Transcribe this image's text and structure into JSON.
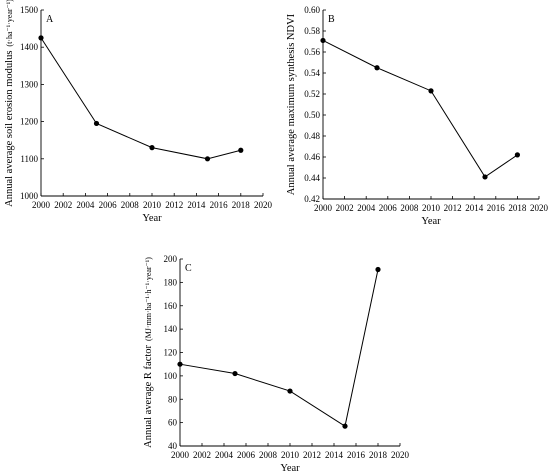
{
  "chart_data": [
    {
      "id": "A",
      "type": "line",
      "panel_label": "A",
      "xlabel": "Year",
      "ylabel": "Annual average soil erosion modulus",
      "ylabel_unit": "(t·ha⁻¹·year⁻¹)",
      "xlim": [
        2000,
        2020
      ],
      "ylim": [
        1000,
        1500
      ],
      "xticks": [
        "2000",
        "2002",
        "2004",
        "2006",
        "2008",
        "2010",
        "2012",
        "2014",
        "2016",
        "2018",
        "2020"
      ],
      "yticks": [
        "1000",
        "1100",
        "1200",
        "1300",
        "1400",
        "1500"
      ],
      "x": [
        2000,
        2005,
        2010,
        2015,
        2018
      ],
      "y": [
        1425,
        1195,
        1130,
        1100,
        1123
      ]
    },
    {
      "id": "B",
      "type": "line",
      "panel_label": "B",
      "xlabel": "Year",
      "ylabel": "Annual average maximum synthesis  NDVI",
      "ylabel_unit": "",
      "xlim": [
        2000,
        2020
      ],
      "ylim": [
        0.42,
        0.6
      ],
      "xticks": [
        "2000",
        "2002",
        "2004",
        "2006",
        "2008",
        "2010",
        "2012",
        "2014",
        "2016",
        "2018",
        "2020"
      ],
      "yticks": [
        "0.42",
        "0.44",
        "0.46",
        "0.48",
        "0.50",
        "0.52",
        "0.54",
        "0.56",
        "0.58",
        "0.60"
      ],
      "x": [
        2000,
        2005,
        2010,
        2015,
        2018
      ],
      "y": [
        0.571,
        0.545,
        0.523,
        0.441,
        0.462
      ]
    },
    {
      "id": "C",
      "type": "line",
      "panel_label": "C",
      "xlabel": "Year",
      "ylabel": "Annual average R factor",
      "ylabel_unit": "(MJ·mm·ha⁻¹·h⁻¹·year⁻¹)",
      "xlim": [
        2000,
        2020
      ],
      "ylim": [
        40,
        200
      ],
      "xticks": [
        "2000",
        "2002",
        "2004",
        "2006",
        "2008",
        "2010",
        "2012",
        "2014",
        "2016",
        "2018",
        "2020"
      ],
      "yticks": [
        "40",
        "60",
        "80",
        "100",
        "120",
        "140",
        "160",
        "180",
        "200"
      ],
      "x": [
        2000,
        2005,
        2010,
        2015,
        2018
      ],
      "y": [
        110,
        102,
        87,
        57,
        191
      ]
    }
  ]
}
